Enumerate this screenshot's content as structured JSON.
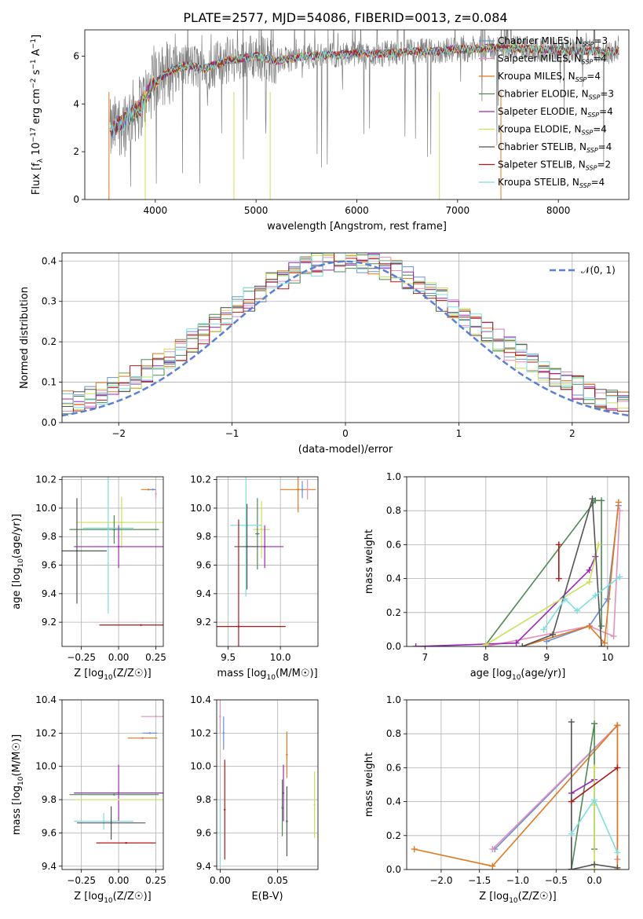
{
  "figure": {
    "title": "PLATE=2577, MJD=54086, FIBERID=0013, z=0.084"
  },
  "colors": {
    "Chabrier MILES": "#6a8fd6",
    "Salpeter MILES": "#e68fb8",
    "Kroupa MILES": "#e0781f",
    "Chabrier ELODIE": "#4d8a52",
    "Salpeter ELODIE": "#9b27b8",
    "Kroupa ELODIE": "#c8e05a",
    "Chabrier STELIB": "#555555",
    "Salpeter STELIB": "#b01818",
    "Kroupa STELIB": "#7fdde0",
    "data": "#808080",
    "normal": "#5b7fd6",
    "grid": "#b0b0b0"
  },
  "chart_data": [
    {
      "id": "spectrum",
      "type": "line",
      "xlabel": "wavelength [Angstrom, rest frame]",
      "ylabel": "Flux [f_λ 10^-17 erg cm^-2 s^-1 A^-1]",
      "xlim": [
        3300,
        8700
      ],
      "ylim": [
        0,
        7.1
      ],
      "xticks": [
        4000,
        5000,
        6000,
        7000,
        8000
      ],
      "yticks": [
        0,
        2,
        4,
        6
      ],
      "legend_position": "upper-right",
      "legend": [
        {
          "model": "Chabrier MILES",
          "nssp": "3"
        },
        {
          "model": "Salpeter MILES",
          "nssp": "4"
        },
        {
          "model": "Kroupa MILES",
          "nssp": "4"
        },
        {
          "model": "Chabrier ELODIE",
          "nssp": "3"
        },
        {
          "model": "Salpeter ELODIE",
          "nssp": "4"
        },
        {
          "model": "Kroupa ELODIE",
          "nssp": "4"
        },
        {
          "model": "Chabrier STELIB",
          "nssp": "4"
        },
        {
          "model": "Salpeter STELIB",
          "nssp": "2"
        },
        {
          "model": "Kroupa STELIB",
          "nssp": "4"
        }
      ],
      "continuum": {
        "x": [
          3550,
          3700,
          3850,
          3950,
          4100,
          4300,
          4500,
          4700,
          4850,
          5000,
          5200,
          5500,
          5800,
          6000,
          6300,
          6560,
          6800,
          7000,
          7200,
          7400,
          7700,
          8000,
          8300,
          8600
        ],
        "y": [
          2.8,
          3.4,
          3.9,
          4.6,
          5.3,
          5.6,
          5.5,
          5.8,
          5.9,
          6.0,
          5.8,
          6.0,
          6.05,
          6.1,
          6.1,
          6.2,
          6.2,
          6.3,
          6.3,
          6.35,
          6.3,
          6.25,
          6.2,
          6.2
        ]
      }
    },
    {
      "id": "residuals",
      "type": "bar",
      "xlabel": "(data-model)/error",
      "ylabel": "Normed distribution",
      "xlim": [
        -2.5,
        2.5
      ],
      "ylim": [
        0,
        0.42
      ],
      "xticks": [
        -2,
        -1,
        0,
        1,
        2
      ],
      "yticks": [
        0.0,
        0.1,
        0.2,
        0.3,
        0.4
      ],
      "legend_position": "upper-right",
      "legend": [
        {
          "name": "𝒩(0, 1)"
        }
      ],
      "bins": {
        "start": -2.5,
        "width": 0.1,
        "count": 50
      }
    },
    {
      "id": "age_vs_Z",
      "type": "scatter",
      "xlabel": "Z [log₁₀(Z/Z☉)]",
      "ylabel": "age  [log₁₀(age/yr)]",
      "xlim": [
        -0.38,
        0.3
      ],
      "ylim": [
        9.03,
        10.22
      ],
      "xticks": [
        -0.25,
        0.0,
        0.25
      ],
      "yticks": [
        9.2,
        9.4,
        9.6,
        9.8,
        10.0,
        10.2
      ],
      "points": [
        {
          "model": "Kroupa MILES",
          "x": 0.2,
          "y": 10.13,
          "xerr": 0.05,
          "yerr": 0.0
        },
        {
          "model": "Chabrier MILES",
          "x": 0.23,
          "y": 10.13,
          "xerr": 0.02,
          "yerr": 0.0
        },
        {
          "model": "Salpeter MILES",
          "x": 0.25,
          "y": 10.1,
          "xerr": 0.0,
          "yerr": 0.03
        },
        {
          "model": "Kroupa ELODIE",
          "x": 0.02,
          "y": 9.9,
          "xerr": 0.3,
          "yerr": 0.18
        },
        {
          "model": "Chabrier ELODIE",
          "x": -0.03,
          "y": 9.85,
          "xerr": 0.3,
          "yerr": 0.1
        },
        {
          "model": "Kroupa STELIB",
          "x": -0.07,
          "y": 9.86,
          "xerr": 0.17,
          "yerr": 0.6
        },
        {
          "model": "Salpeter ELODIE",
          "x": 0.0,
          "y": 9.73,
          "xerr": 0.3,
          "yerr": 0.15
        },
        {
          "model": "Chabrier STELIB",
          "x": -0.28,
          "y": 9.7,
          "xerr": 0.2,
          "yerr": 0.37
        },
        {
          "model": "Salpeter STELIB",
          "x": 0.15,
          "y": 9.18,
          "xerr": 0.28,
          "yerr": 0.0
        }
      ]
    },
    {
      "id": "age_vs_mass",
      "type": "scatter",
      "xlabel": "mass [log₁₀(M/M☉)]",
      "ylabel": "",
      "xlim": [
        9.39,
        10.36
      ],
      "ylim": [
        9.03,
        10.22
      ],
      "xticks": [
        9.5,
        10.0
      ],
      "yticks": [
        9.2,
        9.4,
        9.6,
        9.8,
        10.0,
        10.2
      ],
      "points": [
        {
          "model": "Kroupa MILES",
          "x": 10.17,
          "y": 10.13,
          "xerr": 0.17,
          "yerr": 0.16
        },
        {
          "model": "Chabrier MILES",
          "x": 10.21,
          "y": 10.13,
          "xerr": 0.0,
          "yerr": 0.06
        },
        {
          "model": "Salpeter MILES",
          "x": 10.26,
          "y": 10.13,
          "xerr": 0.0,
          "yerr": 0.07
        },
        {
          "model": "Kroupa ELODIE",
          "x": 9.82,
          "y": 9.85,
          "xerr": 0.08,
          "yerr": 0.2
        },
        {
          "model": "Chabrier ELODIE",
          "x": 9.78,
          "y": 9.82,
          "xerr": 0.02,
          "yerr": 0.25
        },
        {
          "model": "Kroupa STELIB",
          "x": 9.67,
          "y": 9.88,
          "xerr": 0.15,
          "yerr": 0.5
        },
        {
          "model": "Salpeter ELODIE",
          "x": 9.85,
          "y": 9.73,
          "xerr": 0.18,
          "yerr": 0.15
        },
        {
          "model": "Chabrier STELIB",
          "x": 9.68,
          "y": 9.73,
          "xerr": 0.12,
          "yerr": 0.3
        },
        {
          "model": "Salpeter STELIB",
          "x": 9.6,
          "y": 9.17,
          "xerr": 0.45,
          "yerr": 0.75
        }
      ]
    },
    {
      "id": "mass_weight_vs_age",
      "type": "line",
      "xlabel": "age  [log₁₀(age/yr)]",
      "ylabel": "mass weight",
      "xlim": [
        6.7,
        10.35
      ],
      "ylim": [
        0.0,
        1.0
      ],
      "xticks": [
        7,
        8,
        9,
        10
      ],
      "yticks": [
        0.0,
        0.2,
        0.4,
        0.6,
        0.8,
        1.0
      ],
      "series": [
        {
          "model": "Chabrier MILES",
          "x": [
            9.0,
            9.7,
            10.0,
            10.18
          ],
          "y": [
            0.03,
            0.12,
            0.28,
            0.83
          ]
        },
        {
          "model": "Salpeter MILES",
          "x": [
            8.0,
            9.7,
            10.1,
            10.2
          ],
          "y": [
            0.0,
            0.12,
            0.06,
            0.8
          ]
        },
        {
          "model": "Kroupa MILES",
          "x": [
            8.6,
            9.7,
            9.95,
            10.18
          ],
          "y": [
            0.0,
            0.12,
            0.02,
            0.85
          ]
        },
        {
          "model": "Chabrier ELODIE",
          "x": [
            8.0,
            9.8,
            9.9,
            9.9
          ],
          "y": [
            0.01,
            0.86,
            0.86,
            0.12
          ]
        },
        {
          "model": "Salpeter ELODIE",
          "x": [
            6.85,
            8.5,
            9.7,
            9.8
          ],
          "y": [
            0.0,
            0.02,
            0.45,
            0.53
          ]
        },
        {
          "model": "Kroupa ELODIE",
          "x": [
            8.0,
            9.7,
            9.85
          ],
          "y": [
            0.01,
            0.38,
            0.6
          ]
        },
        {
          "model": "Chabrier STELIB",
          "x": [
            8.6,
            9.1,
            9.75,
            9.9
          ],
          "y": [
            0.0,
            0.07,
            0.87,
            0.0
          ]
        },
        {
          "model": "Salpeter STELIB",
          "x": [
            9.2,
            9.2
          ],
          "y": [
            0.6,
            0.4
          ]
        },
        {
          "model": "Kroupa STELIB",
          "x": [
            8.95,
            9.3,
            9.5,
            9.8,
            10.2
          ],
          "y": [
            0.1,
            0.28,
            0.21,
            0.3,
            0.41
          ]
        }
      ]
    },
    {
      "id": "mass_vs_Z",
      "type": "scatter",
      "xlabel": "Z [log₁₀(Z/Z☉)]",
      "ylabel": "mass [log₁₀(M/M☉)]",
      "xlim": [
        -0.38,
        0.3
      ],
      "ylim": [
        9.38,
        10.4
      ],
      "xticks": [
        -0.25,
        0.0,
        0.25
      ],
      "yticks": [
        9.4,
        9.6,
        9.8,
        10.0,
        10.2,
        10.4
      ],
      "points": [
        {
          "model": "Salpeter MILES",
          "x": 0.25,
          "y": 10.3,
          "xerr": 0.1,
          "yerr": 0.0
        },
        {
          "model": "Chabrier MILES",
          "x": 0.21,
          "y": 10.2,
          "xerr": 0.05,
          "yerr": 0.0
        },
        {
          "model": "Kroupa MILES",
          "x": 0.16,
          "y": 10.17,
          "xerr": 0.1,
          "yerr": 0.0
        },
        {
          "model": "Salpeter ELODIE",
          "x": 0.0,
          "y": 9.84,
          "xerr": 0.3,
          "yerr": 0.17
        },
        {
          "model": "Chabrier ELODIE",
          "x": -0.03,
          "y": 9.83,
          "xerr": 0.3,
          "yerr": 0.0
        },
        {
          "model": "Kroupa ELODIE",
          "x": 0.0,
          "y": 9.8,
          "xerr": 0.3,
          "yerr": 0.0
        },
        {
          "model": "Kroupa STELIB",
          "x": -0.1,
          "y": 9.67,
          "xerr": 0.2,
          "yerr": 0.05
        },
        {
          "model": "Chabrier STELIB",
          "x": -0.05,
          "y": 9.66,
          "xerr": 0.23,
          "yerr": 0.1
        },
        {
          "model": "Salpeter STELIB",
          "x": 0.05,
          "y": 9.54,
          "xerr": 0.2,
          "yerr": 0.0
        }
      ]
    },
    {
      "id": "mass_vs_EBV",
      "type": "scatter",
      "xlabel": "E(B-V)",
      "ylabel": "",
      "xlim": [
        -0.003,
        0.085
      ],
      "ylim": [
        9.38,
        10.4
      ],
      "xticks": [
        0.0,
        0.05
      ],
      "yticks": [
        9.4,
        9.6,
        9.8,
        10.0,
        10.2,
        10.4
      ],
      "points": [
        {
          "model": "Salpeter MILES",
          "x": 0.0,
          "y": 10.3,
          "yerr": 0.1
        },
        {
          "model": "Chabrier MILES",
          "x": 0.003,
          "y": 10.2,
          "yerr": 0.1
        },
        {
          "model": "Kroupa STELIB",
          "x": 0.0,
          "y": 9.6,
          "yerr": 0.2
        },
        {
          "model": "Salpeter STELIB",
          "x": 0.004,
          "y": 9.74,
          "yerr": 0.3
        },
        {
          "model": "Salpeter ELODIE",
          "x": 0.055,
          "y": 9.84,
          "yerr": 0.17
        },
        {
          "model": "Chabrier ELODIE",
          "x": 0.054,
          "y": 9.75,
          "yerr": 0.17
        },
        {
          "model": "Chabrier STELIB",
          "x": 0.058,
          "y": 9.67,
          "yerr": 0.21
        },
        {
          "model": "Kroupa MILES",
          "x": 0.058,
          "y": 10.07,
          "yerr": 0.14
        },
        {
          "model": "Kroupa ELODIE",
          "x": 0.082,
          "y": 9.77,
          "yerr": 0.2
        }
      ]
    },
    {
      "id": "mass_weight_vs_Z",
      "type": "line",
      "xlabel": "Z [log₁₀(Z/Z☉)]",
      "ylabel": "mass weight",
      "xlim": [
        -2.45,
        0.45
      ],
      "ylim": [
        0.0,
        1.0
      ],
      "xticks": [
        -2.0,
        -1.5,
        -1.0,
        -0.5,
        0.0
      ],
      "yticks": [
        0.0,
        0.2,
        0.4,
        0.6,
        0.8,
        1.0
      ],
      "series": [
        {
          "model": "Chabrier MILES",
          "x": [
            -1.3,
            0.3
          ],
          "y": [
            0.12,
            0.85
          ]
        },
        {
          "model": "Salpeter MILES",
          "x": [
            -1.33,
            0.3,
            0.3
          ],
          "y": [
            0.12,
            0.85,
            0.06
          ]
        },
        {
          "model": "Kroupa MILES",
          "x": [
            -2.35,
            -1.33,
            0.3,
            0.3
          ],
          "y": [
            0.12,
            0.02,
            0.85,
            0.0
          ]
        },
        {
          "model": "Chabrier ELODIE",
          "x": [
            -0.3,
            0.0,
            0.0
          ],
          "y": [
            0.0,
            0.86,
            0.12
          ]
        },
        {
          "model": "Salpeter ELODIE",
          "x": [
            -0.3,
            -0.3,
            0.0
          ],
          "y": [
            0.0,
            0.45,
            0.53
          ]
        },
        {
          "model": "Kroupa ELODIE",
          "x": [
            0.0,
            0.0,
            0.0
          ],
          "y": [
            0.6,
            0.38,
            0.0
          ]
        },
        {
          "model": "Chabrier STELIB",
          "x": [
            -0.3,
            -0.3,
            0.0,
            0.3
          ],
          "y": [
            0.87,
            0.0,
            0.03,
            0.01
          ]
        },
        {
          "model": "Salpeter STELIB",
          "x": [
            -0.3,
            0.3
          ],
          "y": [
            0.4,
            0.6
          ]
        },
        {
          "model": "Kroupa STELIB",
          "x": [
            -0.3,
            0.0,
            0.3
          ],
          "y": [
            0.21,
            0.41,
            0.1
          ]
        }
      ]
    }
  ]
}
